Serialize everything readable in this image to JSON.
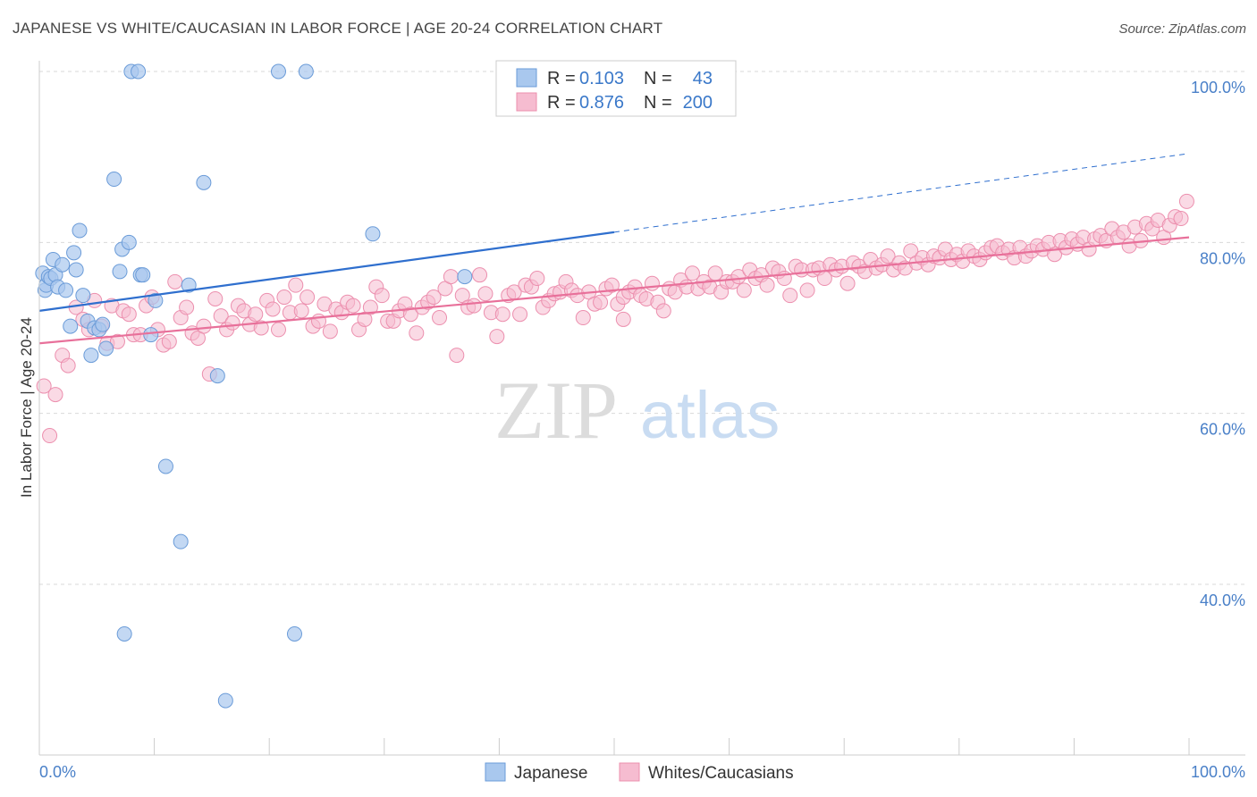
{
  "title": "JAPANESE VS WHITE/CAUCASIAN IN LABOR FORCE | AGE 20-24 CORRELATION CHART",
  "source": "Source: ZipAtlas.com",
  "watermark": {
    "zip": "ZIP",
    "atlas": "atlas"
  },
  "colors": {
    "japanese_fill": "#a9c8ee",
    "japanese_stroke": "#6a9bd8",
    "japanese_line": "#2f6fce",
    "white_fill": "#f6bcd0",
    "white_stroke": "#ec8fae",
    "white_line": "#e8709a",
    "grid": "#d9d9d9",
    "tick_label": "#4a80c8"
  },
  "legend": {
    "rows": [
      {
        "r_label": "R =",
        "r_value": "0.103",
        "n_label": "N =",
        "n_value": "43"
      },
      {
        "r_label": "R =",
        "r_value": "0.876",
        "n_label": "N =",
        "n_value": "200"
      }
    ]
  },
  "bottom_legend": [
    "Japanese",
    "Whites/Caucasians"
  ],
  "chart_data": {
    "type": "scatter",
    "title": "JAPANESE VS WHITE/CAUCASIAN IN LABOR FORCE | AGE 20-24 CORRELATION CHART",
    "xlabel": "",
    "ylabel": "In Labor Force | Age 20-24",
    "xlim": [
      0,
      100
    ],
    "ylim": [
      22,
      102
    ],
    "x_tick_labels": [
      "0.0%",
      "100.0%"
    ],
    "y_ticks": [
      40,
      60,
      80,
      100
    ],
    "y_tick_labels": [
      "40.0%",
      "60.0%",
      "80.0%",
      "100.0%"
    ],
    "grid": "horizontal dashed",
    "legend_position": "top-center",
    "series": [
      {
        "name": "Japanese",
        "r": 0.103,
        "n": 43,
        "trend": {
          "x0": 0,
          "y0": 72.0,
          "x1": 50,
          "y1": 81.2,
          "extend_to_x": 100,
          "extend_to_y": 90.4
        },
        "points": [
          [
            0.3,
            76.4
          ],
          [
            0.5,
            74.4
          ],
          [
            0.6,
            75.0
          ],
          [
            0.8,
            76.0
          ],
          [
            1.0,
            75.8
          ],
          [
            1.2,
            78.0
          ],
          [
            1.4,
            76.2
          ],
          [
            1.6,
            74.8
          ],
          [
            2.0,
            77.4
          ],
          [
            2.3,
            74.4
          ],
          [
            2.7,
            70.2
          ],
          [
            3.0,
            78.8
          ],
          [
            3.2,
            76.8
          ],
          [
            3.5,
            81.4
          ],
          [
            3.8,
            73.8
          ],
          [
            4.2,
            70.8
          ],
          [
            4.5,
            66.8
          ],
          [
            4.8,
            70.0
          ],
          [
            5.2,
            69.8
          ],
          [
            5.5,
            70.4
          ],
          [
            5.8,
            67.6
          ],
          [
            6.5,
            87.4
          ],
          [
            7.0,
            76.6
          ],
          [
            7.2,
            79.2
          ],
          [
            7.8,
            80.0
          ],
          [
            8.0,
            100.0
          ],
          [
            8.6,
            100.0
          ],
          [
            8.8,
            76.2
          ],
          [
            9.0,
            76.2
          ],
          [
            9.7,
            69.2
          ],
          [
            10.1,
            73.2
          ],
          [
            11.0,
            53.8
          ],
          [
            12.3,
            45.0
          ],
          [
            13.0,
            75.0
          ],
          [
            14.3,
            87.0
          ],
          [
            15.5,
            64.4
          ],
          [
            16.2,
            26.4
          ],
          [
            20.8,
            100.0
          ],
          [
            22.2,
            34.2
          ],
          [
            23.2,
            100.0
          ],
          [
            29.0,
            81.0
          ],
          [
            7.4,
            34.2
          ],
          [
            37.0,
            76.0
          ]
        ]
      },
      {
        "name": "Whites/Caucasians",
        "r": 0.876,
        "n": 200,
        "trend": {
          "x0": 0,
          "y0": 68.2,
          "x1": 100,
          "y1": 80.6
        },
        "points": [
          [
            0.4,
            63.2
          ],
          [
            0.9,
            57.4
          ],
          [
            1.4,
            62.2
          ],
          [
            2.0,
            66.8
          ],
          [
            2.5,
            65.6
          ],
          [
            3.2,
            72.4
          ],
          [
            3.8,
            71.0
          ],
          [
            4.3,
            69.8
          ],
          [
            4.8,
            73.2
          ],
          [
            5.4,
            70.2
          ],
          [
            5.9,
            68.2
          ],
          [
            6.3,
            72.6
          ],
          [
            6.8,
            68.4
          ],
          [
            7.3,
            72.0
          ],
          [
            7.8,
            71.6
          ],
          [
            8.2,
            69.2
          ],
          [
            8.8,
            69.2
          ],
          [
            9.3,
            72.6
          ],
          [
            9.8,
            73.6
          ],
          [
            10.3,
            69.8
          ],
          [
            10.8,
            68.0
          ],
          [
            11.3,
            68.4
          ],
          [
            11.8,
            75.4
          ],
          [
            12.3,
            71.2
          ],
          [
            12.8,
            72.4
          ],
          [
            13.3,
            69.4
          ],
          [
            13.8,
            68.8
          ],
          [
            14.3,
            70.2
          ],
          [
            14.8,
            64.6
          ],
          [
            15.3,
            73.4
          ],
          [
            15.8,
            71.4
          ],
          [
            16.3,
            69.8
          ],
          [
            16.8,
            70.6
          ],
          [
            17.3,
            72.6
          ],
          [
            17.8,
            72.0
          ],
          [
            18.3,
            70.4
          ],
          [
            18.8,
            71.6
          ],
          [
            19.3,
            70.0
          ],
          [
            19.8,
            73.2
          ],
          [
            20.3,
            72.2
          ],
          [
            20.8,
            69.8
          ],
          [
            21.3,
            73.6
          ],
          [
            21.8,
            71.8
          ],
          [
            22.3,
            75.0
          ],
          [
            22.8,
            72.0
          ],
          [
            23.3,
            73.6
          ],
          [
            23.8,
            70.2
          ],
          [
            24.3,
            70.8
          ],
          [
            24.8,
            72.8
          ],
          [
            25.3,
            69.6
          ],
          [
            25.8,
            72.2
          ],
          [
            26.3,
            71.8
          ],
          [
            26.8,
            73.0
          ],
          [
            27.3,
            72.6
          ],
          [
            27.8,
            69.8
          ],
          [
            28.3,
            71.0
          ],
          [
            28.8,
            72.4
          ],
          [
            29.3,
            74.8
          ],
          [
            29.8,
            73.8
          ],
          [
            30.3,
            70.8
          ],
          [
            30.8,
            70.8
          ],
          [
            31.3,
            72.0
          ],
          [
            31.8,
            72.8
          ],
          [
            32.3,
            71.6
          ],
          [
            32.8,
            69.4
          ],
          [
            33.3,
            72.4
          ],
          [
            33.8,
            73.0
          ],
          [
            34.3,
            73.6
          ],
          [
            34.8,
            71.2
          ],
          [
            35.3,
            74.6
          ],
          [
            35.8,
            76.0
          ],
          [
            36.3,
            66.8
          ],
          [
            36.8,
            73.8
          ],
          [
            37.3,
            72.4
          ],
          [
            37.8,
            72.6
          ],
          [
            38.3,
            76.2
          ],
          [
            38.8,
            74.0
          ],
          [
            39.3,
            71.8
          ],
          [
            39.8,
            69.0
          ],
          [
            40.3,
            71.6
          ],
          [
            40.8,
            73.8
          ],
          [
            41.3,
            74.2
          ],
          [
            41.8,
            71.6
          ],
          [
            42.3,
            75.0
          ],
          [
            42.8,
            74.8
          ],
          [
            43.3,
            75.8
          ],
          [
            43.8,
            72.4
          ],
          [
            44.3,
            73.2
          ],
          [
            44.8,
            74.0
          ],
          [
            45.3,
            74.2
          ],
          [
            45.8,
            75.4
          ],
          [
            46.3,
            74.4
          ],
          [
            46.8,
            73.8
          ],
          [
            47.3,
            71.2
          ],
          [
            47.8,
            74.2
          ],
          [
            48.3,
            72.8
          ],
          [
            48.8,
            73.0
          ],
          [
            49.3,
            74.6
          ],
          [
            49.8,
            75.0
          ],
          [
            50.3,
            72.8
          ],
          [
            50.8,
            73.6
          ],
          [
            51.3,
            74.2
          ],
          [
            51.8,
            74.8
          ],
          [
            52.3,
            73.8
          ],
          [
            52.8,
            73.4
          ],
          [
            53.3,
            75.2
          ],
          [
            53.8,
            73.0
          ],
          [
            54.3,
            72.0
          ],
          [
            54.8,
            74.6
          ],
          [
            55.3,
            74.2
          ],
          [
            55.8,
            75.6
          ],
          [
            56.3,
            74.8
          ],
          [
            56.8,
            76.4
          ],
          [
            57.3,
            74.6
          ],
          [
            57.8,
            75.4
          ],
          [
            58.3,
            74.8
          ],
          [
            58.8,
            76.4
          ],
          [
            59.3,
            74.2
          ],
          [
            59.8,
            75.4
          ],
          [
            60.3,
            75.4
          ],
          [
            60.8,
            76.0
          ],
          [
            61.3,
            74.4
          ],
          [
            61.8,
            76.8
          ],
          [
            62.3,
            75.8
          ],
          [
            62.8,
            76.2
          ],
          [
            63.3,
            75.0
          ],
          [
            63.8,
            77.0
          ],
          [
            64.3,
            76.6
          ],
          [
            64.8,
            75.8
          ],
          [
            65.3,
            73.8
          ],
          [
            65.8,
            77.2
          ],
          [
            66.3,
            76.8
          ],
          [
            66.8,
            74.4
          ],
          [
            67.3,
            76.8
          ],
          [
            67.8,
            77.0
          ],
          [
            68.3,
            75.8
          ],
          [
            68.8,
            77.4
          ],
          [
            69.3,
            76.8
          ],
          [
            69.8,
            77.2
          ],
          [
            70.3,
            75.2
          ],
          [
            70.8,
            77.6
          ],
          [
            71.3,
            77.2
          ],
          [
            71.8,
            76.6
          ],
          [
            72.3,
            78.0
          ],
          [
            72.8,
            77.0
          ],
          [
            73.3,
            77.4
          ],
          [
            73.8,
            78.4
          ],
          [
            74.3,
            76.8
          ],
          [
            74.8,
            77.6
          ],
          [
            75.3,
            77.0
          ],
          [
            75.8,
            79.0
          ],
          [
            76.3,
            77.6
          ],
          [
            76.8,
            78.2
          ],
          [
            77.3,
            77.4
          ],
          [
            77.8,
            78.4
          ],
          [
            78.3,
            78.2
          ],
          [
            78.8,
            79.2
          ],
          [
            79.3,
            78.0
          ],
          [
            79.8,
            78.6
          ],
          [
            80.3,
            77.8
          ],
          [
            80.8,
            79.0
          ],
          [
            81.3,
            78.4
          ],
          [
            81.8,
            78.0
          ],
          [
            82.3,
            78.8
          ],
          [
            82.8,
            79.4
          ],
          [
            83.3,
            79.6
          ],
          [
            83.8,
            78.8
          ],
          [
            84.3,
            79.2
          ],
          [
            84.8,
            78.2
          ],
          [
            85.3,
            79.4
          ],
          [
            85.8,
            78.4
          ],
          [
            86.3,
            79.0
          ],
          [
            86.8,
            79.6
          ],
          [
            87.3,
            79.2
          ],
          [
            87.8,
            80.0
          ],
          [
            88.3,
            78.6
          ],
          [
            88.8,
            80.2
          ],
          [
            89.3,
            79.4
          ],
          [
            89.8,
            80.4
          ],
          [
            90.3,
            79.8
          ],
          [
            90.8,
            80.6
          ],
          [
            91.3,
            79.2
          ],
          [
            91.8,
            80.4
          ],
          [
            92.3,
            80.8
          ],
          [
            92.8,
            80.2
          ],
          [
            93.3,
            81.6
          ],
          [
            93.8,
            80.6
          ],
          [
            94.3,
            81.2
          ],
          [
            94.8,
            79.6
          ],
          [
            95.3,
            81.8
          ],
          [
            95.8,
            80.2
          ],
          [
            96.3,
            82.2
          ],
          [
            96.8,
            81.6
          ],
          [
            97.3,
            82.6
          ],
          [
            97.8,
            80.6
          ],
          [
            98.3,
            82.0
          ],
          [
            98.8,
            83.0
          ],
          [
            99.3,
            82.8
          ],
          [
            99.8,
            84.8
          ],
          [
            50.8,
            71.0
          ]
        ]
      }
    ]
  }
}
